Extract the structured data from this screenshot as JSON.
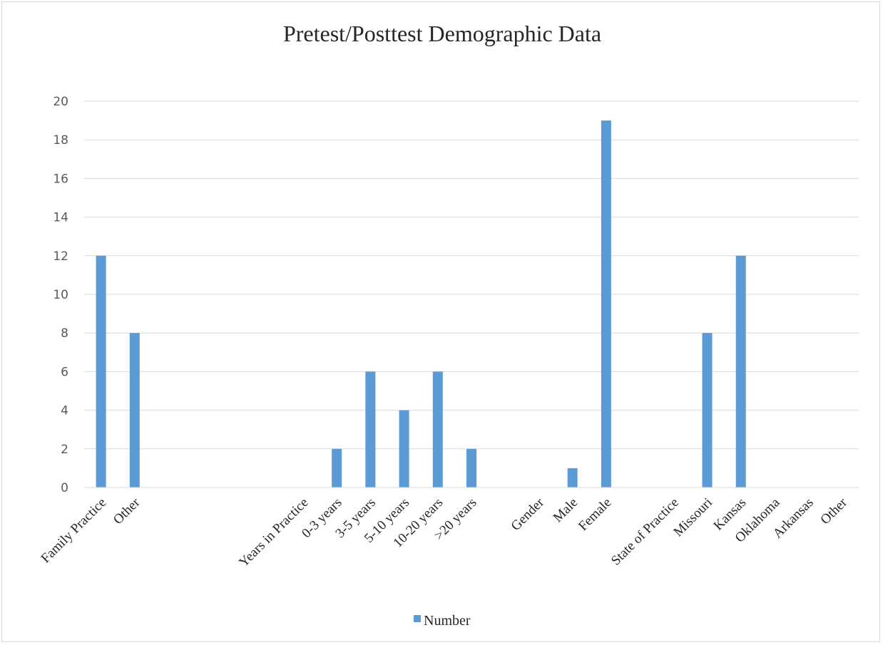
{
  "chart_data": {
    "type": "bar",
    "title": "Pretest/Posttest Demographic Data",
    "xlabel": "",
    "ylabel": "",
    "ylim": [
      0,
      20
    ],
    "ytick_step": 2,
    "grid": true,
    "legend_position": "bottom",
    "categories": [
      "Family Practice",
      "Other",
      "",
      "",
      "",
      "",
      "Years in Practice",
      "0-3 years",
      "3-5 years",
      "5-10 years",
      "10-20 years",
      ">20 years",
      "",
      "Gender",
      "Male",
      "Female",
      "",
      "State of Practice",
      "Missouri",
      "Kansas",
      "Oklahoma",
      "Arkansas",
      "Other"
    ],
    "series": [
      {
        "name": "Number",
        "color": "#5b9bd5",
        "values": [
          12,
          8,
          null,
          null,
          null,
          null,
          null,
          2,
          6,
          4,
          6,
          2,
          null,
          null,
          1,
          19,
          null,
          null,
          8,
          12,
          null,
          null,
          null
        ]
      }
    ]
  }
}
